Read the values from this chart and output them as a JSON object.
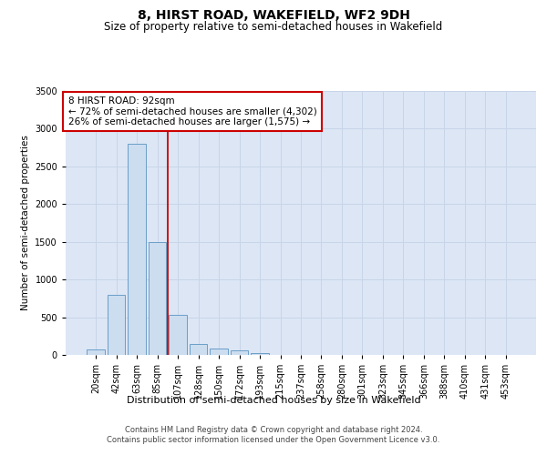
{
  "title": "8, HIRST ROAD, WAKEFIELD, WF2 9DH",
  "subtitle": "Size of property relative to semi-detached houses in Wakefield",
  "xlabel": "Distribution of semi-detached houses by size in Wakefield",
  "ylabel": "Number of semi-detached properties",
  "categories": [
    "20sqm",
    "42sqm",
    "63sqm",
    "85sqm",
    "107sqm",
    "128sqm",
    "150sqm",
    "172sqm",
    "193sqm",
    "215sqm",
    "237sqm",
    "258sqm",
    "280sqm",
    "301sqm",
    "323sqm",
    "345sqm",
    "366sqm",
    "388sqm",
    "410sqm",
    "431sqm",
    "453sqm"
  ],
  "values": [
    75,
    800,
    2800,
    1500,
    530,
    150,
    80,
    55,
    30,
    0,
    0,
    0,
    0,
    0,
    0,
    0,
    0,
    0,
    0,
    0,
    0
  ],
  "bar_color": "#ccddf0",
  "bar_edge_color": "#6b9ec8",
  "red_line_x": 3.5,
  "annotation_text": "8 HIRST ROAD: 92sqm\n← 72% of semi-detached houses are smaller (4,302)\n26% of semi-detached houses are larger (1,575) →",
  "annotation_box_color": "#ffffff",
  "annotation_box_edge": "#cc0000",
  "grid_color": "#c8d4e8",
  "background_color": "#dce6f5",
  "ylim": [
    0,
    3500
  ],
  "yticks": [
    0,
    500,
    1000,
    1500,
    2000,
    2500,
    3000,
    3500
  ],
  "footer": "Contains HM Land Registry data © Crown copyright and database right 2024.\nContains public sector information licensed under the Open Government Licence v3.0.",
  "title_fontsize": 10,
  "subtitle_fontsize": 8.5,
  "xlabel_fontsize": 8,
  "ylabel_fontsize": 7.5,
  "tick_fontsize": 7,
  "annotation_fontsize": 7.5,
  "footer_fontsize": 6
}
